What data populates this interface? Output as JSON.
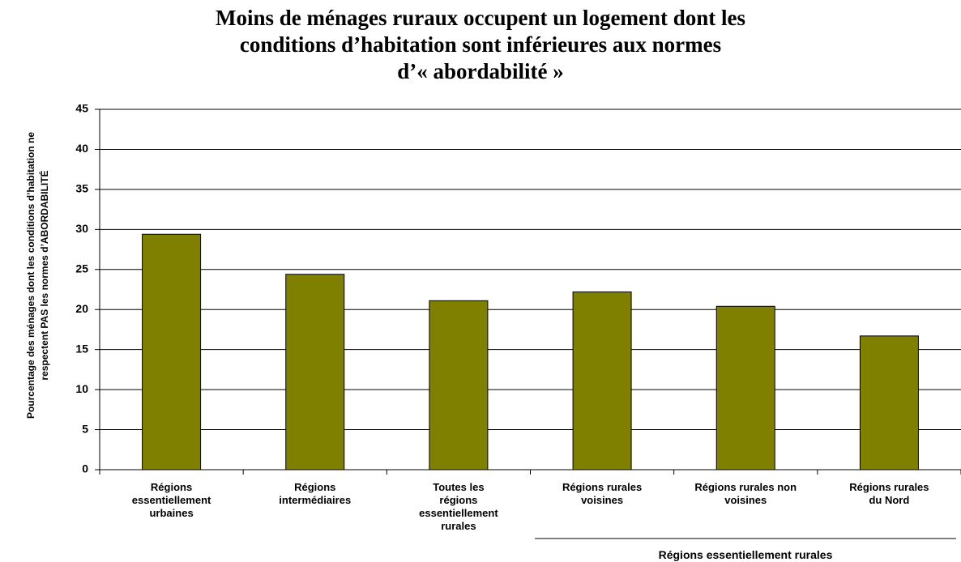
{
  "chart_data": {
    "type": "bar",
    "title": "Moins de ménages ruraux occupent un logement dont les\nconditions d’habitation sont inférieures aux normes\nd’« abordabilité »",
    "y_label": "Pourcentage des ménages dont les conditions d’habitation ne\nrespectent PAS les  normes d’ABORDABILITÉ",
    "categories": [
      "Régions\nessentiellement\nurbaines",
      "Régions\nintermédiaires",
      "Toutes les\nrégions\nessentiellement\nrurales",
      "Régions rurales\nvoisines",
      "Régions rurales non\nvoisines",
      "Régions rurales\ndu Nord"
    ],
    "values": [
      29.4,
      24.4,
      21.1,
      22.2,
      20.4,
      16.7
    ],
    "color": "#808000",
    "ylim": [
      0,
      45
    ],
    "yticks": [
      0,
      5,
      10,
      15,
      20,
      25,
      30,
      35,
      40,
      45
    ],
    "grid": true,
    "group_label": "Régions essentiellement rurales"
  }
}
